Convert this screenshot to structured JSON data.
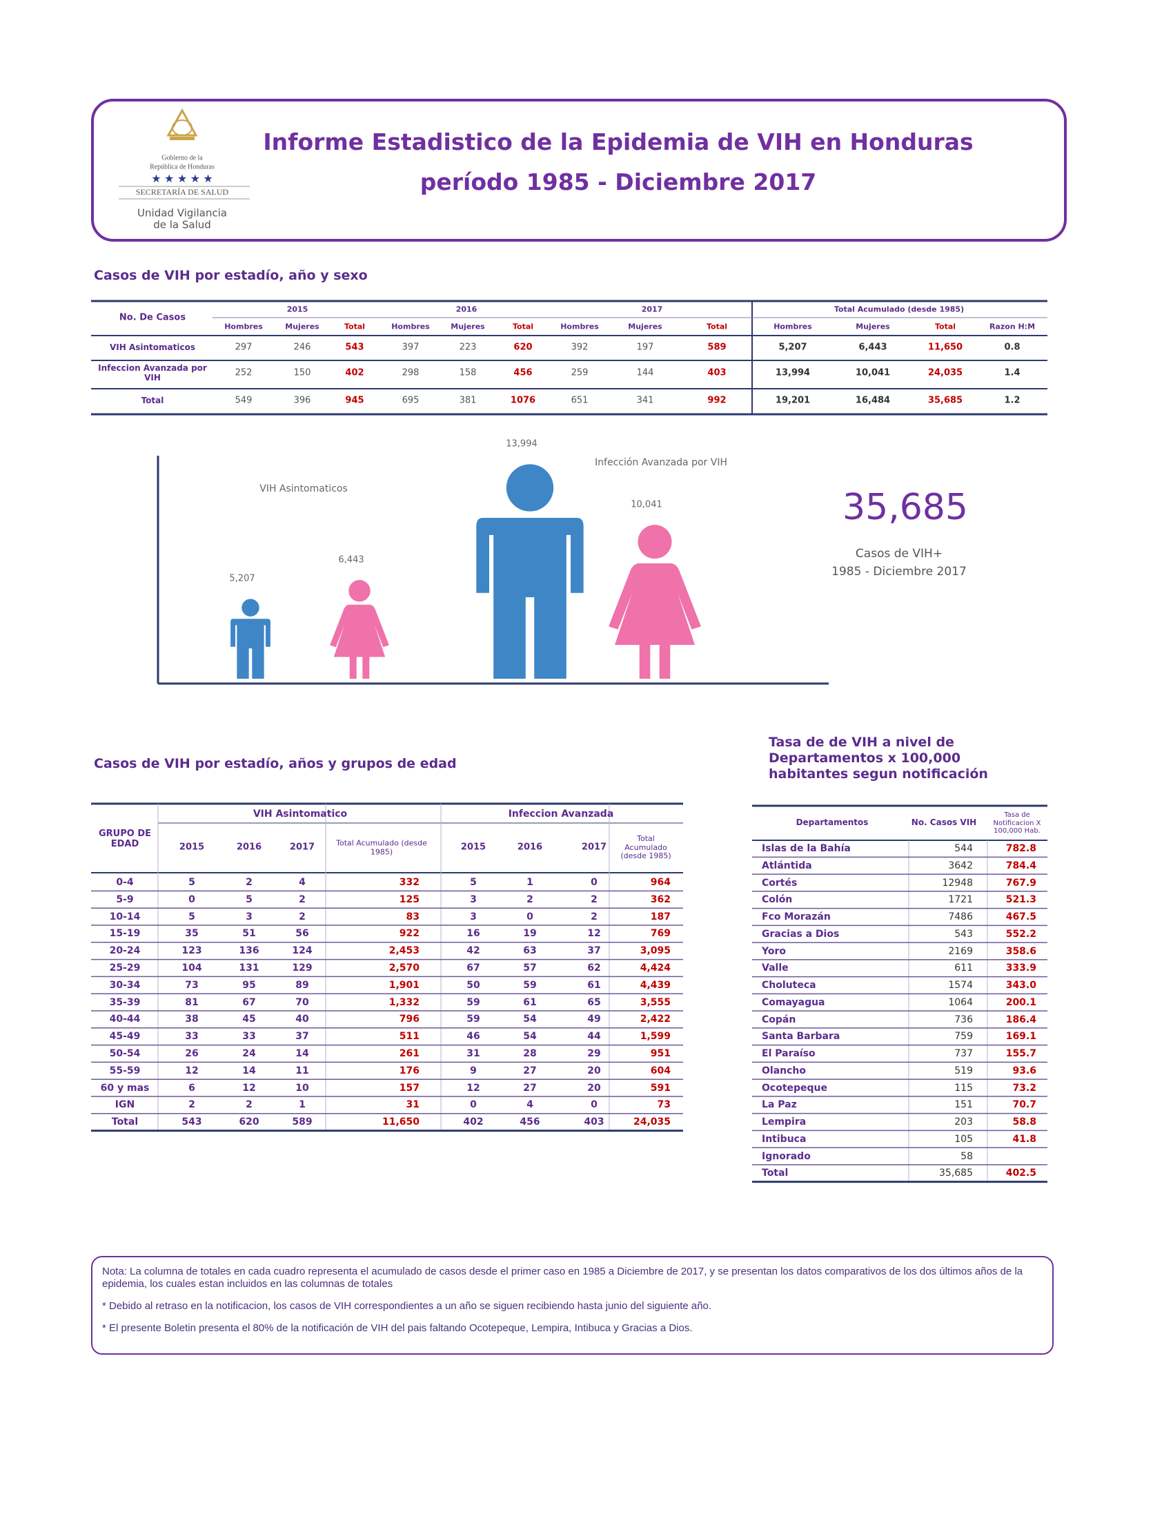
{
  "header": {
    "logo_lines": [
      "Gobierno de la",
      "República de Honduras",
      "SECRETARÍA DE SALUD"
    ],
    "unit_lines": [
      "Unidad Vigilancia",
      "de la Salud"
    ],
    "title": "Informe Estadistico de la Epidemia de VIH en Honduras",
    "subtitle": "período 1985 - Diciembre 2017"
  },
  "table_sexo": {
    "title": "Casos de VIH por estadío, año y sexo",
    "corner": "No. De Casos",
    "groups": [
      "2015",
      "2016",
      "2017",
      "Total Acumulado (desde 1985)"
    ],
    "columns": [
      "Hombres",
      "Mujeres",
      "Total",
      "Hombres",
      "Mujeres",
      "Total",
      "Hombres",
      "Mujeres",
      "Total",
      "Hombres",
      "Mujeres",
      "Total",
      "Razon H:M"
    ],
    "rows": [
      [
        "VIH Asintomaticos",
        "297",
        "246",
        "543",
        "397",
        "223",
        "620",
        "392",
        "197",
        "589",
        "5,207",
        "6,443",
        "11,650",
        "0.8"
      ],
      [
        "Infeccion Avanzada por VIH",
        "252",
        "150",
        "402",
        "298",
        "158",
        "456",
        "259",
        "144",
        "403",
        "13,994",
        "10,041",
        "24,035",
        "1.4"
      ],
      [
        "Total",
        "549",
        "396",
        "945",
        "695",
        "381",
        "1076",
        "651",
        "341",
        "992",
        "19,201",
        "16,484",
        "35,685",
        "1.2"
      ]
    ]
  },
  "chart_data": {
    "type": "pictogram",
    "colors": [
      "#3f86c7",
      "#ef72ab",
      "#3f86c7",
      "#ef72ab"
    ],
    "series": [
      {
        "name": "VIH Asintomaticos",
        "values": [
          5207,
          6443
        ],
        "value_labels": [
          "5,207",
          "6,443"
        ]
      },
      {
        "name": "Infección Avanzada por VIH",
        "values": [
          13994,
          10041
        ],
        "value_labels": [
          "13,994",
          "10,041"
        ]
      }
    ]
  },
  "total_box": {
    "value": "35,685",
    "caption_lines": [
      "Casos de VIH+",
      "1985 - Diciembre 2017"
    ]
  },
  "table_edad": {
    "title": "Casos de VIH por estadío, años y grupos de edad",
    "corner": "GRUPO DE EDAD",
    "groups": [
      "VIH Asintomatico",
      "Infeccion Avanzada"
    ],
    "columns": [
      "2015",
      "2016",
      "2017",
      "Total Acumulado (desde 1985)",
      "2015",
      "2016",
      "2017",
      "Total Acumulado (desde 1985)"
    ],
    "rows": [
      [
        "0-4",
        "5",
        "2",
        "4",
        "332",
        "5",
        "1",
        "0",
        "964"
      ],
      [
        "5-9",
        "0",
        "5",
        "2",
        "125",
        "3",
        "2",
        "2",
        "362"
      ],
      [
        "10-14",
        "5",
        "3",
        "2",
        "83",
        "3",
        "0",
        "2",
        "187"
      ],
      [
        "15-19",
        "35",
        "51",
        "56",
        "922",
        "16",
        "19",
        "12",
        "769"
      ],
      [
        "20-24",
        "123",
        "136",
        "124",
        "2,453",
        "42",
        "63",
        "37",
        "3,095"
      ],
      [
        "25-29",
        "104",
        "131",
        "129",
        "2,570",
        "67",
        "57",
        "62",
        "4,424"
      ],
      [
        "30-34",
        "73",
        "95",
        "89",
        "1,901",
        "50",
        "59",
        "61",
        "4,439"
      ],
      [
        "35-39",
        "81",
        "67",
        "70",
        "1,332",
        "59",
        "61",
        "65",
        "3,555"
      ],
      [
        "40-44",
        "38",
        "45",
        "40",
        "796",
        "59",
        "54",
        "49",
        "2,422"
      ],
      [
        "45-49",
        "33",
        "33",
        "37",
        "511",
        "46",
        "54",
        "44",
        "1,599"
      ],
      [
        "50-54",
        "26",
        "24",
        "14",
        "261",
        "31",
        "28",
        "29",
        "951"
      ],
      [
        "55-59",
        "12",
        "14",
        "11",
        "176",
        "9",
        "27",
        "20",
        "604"
      ],
      [
        "60 y mas",
        "6",
        "12",
        "10",
        "157",
        "12",
        "27",
        "20",
        "591"
      ],
      [
        "IGN",
        "2",
        "2",
        "1",
        "31",
        "0",
        "4",
        "0",
        "73"
      ],
      [
        "Total",
        "543",
        "620",
        "589",
        "11,650",
        "402",
        "456",
        "403",
        "24,035"
      ]
    ]
  },
  "table_tasa": {
    "title_lines": [
      "Tasa de  de VIH a nivel de",
      "Departamentos  x 100,000",
      "habitantes segun notificación"
    ],
    "columns": [
      "Departamentos",
      "No. Casos VIH",
      "Tasa de Notificacion X 100,000 Hab."
    ],
    "rows": [
      [
        "Islas de la Bahía",
        "544",
        "782.8"
      ],
      [
        "Atlántida",
        "3642",
        "784.4"
      ],
      [
        "Cortés",
        "12948",
        "767.9"
      ],
      [
        "Colón",
        "1721",
        "521.3"
      ],
      [
        "Fco Morazán",
        "7486",
        "467.5"
      ],
      [
        "Gracias a Dios",
        "543",
        "552.2"
      ],
      [
        "Yoro",
        "2169",
        "358.6"
      ],
      [
        "Valle",
        "611",
        "333.9"
      ],
      [
        "Choluteca",
        "1574",
        "343.0"
      ],
      [
        "Comayagua",
        "1064",
        "200.1"
      ],
      [
        "Copán",
        "736",
        "186.4"
      ],
      [
        "Santa Barbara",
        "759",
        "169.1"
      ],
      [
        "El Paraíso",
        "737",
        "155.7"
      ],
      [
        "Olancho",
        "519",
        "93.6"
      ],
      [
        "Ocotepeque",
        "115",
        "73.2"
      ],
      [
        "La Paz",
        "151",
        "70.7"
      ],
      [
        "Lempira",
        "203",
        "58.8"
      ],
      [
        "Intibuca",
        "105",
        "41.8"
      ],
      [
        "Ignorado",
        "58"
      ],
      [
        "Total",
        "35,685",
        "402.5"
      ]
    ]
  },
  "note": {
    "paragraphs": [
      "Nota: La columna de totales en cada cuadro  representa el acumulado de casos desde el primer caso en 1985 a Diciembre de 2017, y se presentan los datos comparativos de los dos últimos años de la epidemia, los cuales estan incluidos en las columnas de totales",
      "* Debido al retraso en la notificacion, los casos de VIH correspondientes a un año se siguen recibiendo hasta  junio del siguiente año.",
      "* El presente Boletin presenta el 80% de la notificación de VIH del pais faltando Ocotepeque, Lempira, Intibuca y Gracias a Dios."
    ]
  }
}
